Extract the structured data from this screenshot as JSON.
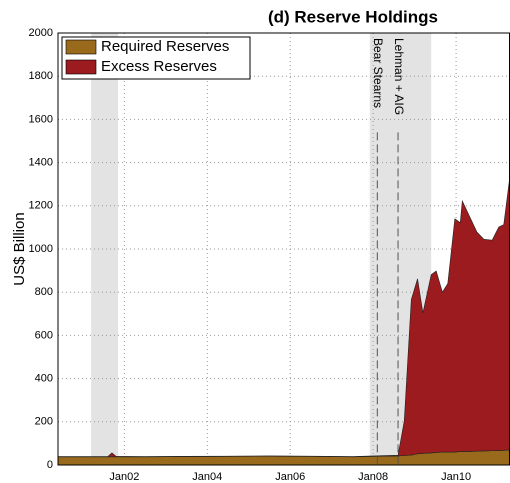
{
  "chart_data": {
    "type": "stacked-area",
    "title": "(d) Reserve Holdings",
    "y_label": "US$ Billion",
    "x": [
      2000.4,
      2001.0,
      2001.6,
      2001.7,
      2001.8,
      2002.5,
      2003.5,
      2004.5,
      2005.5,
      2006.5,
      2007.5,
      2008.0,
      2008.6,
      2008.75,
      2008.92,
      2009.07,
      2009.2,
      2009.4,
      2009.52,
      2009.67,
      2009.8,
      2009.97,
      2010.1,
      2010.15,
      2010.32,
      2010.5,
      2010.67,
      2010.87,
      2011.03,
      2011.15,
      2011.3
    ],
    "series": [
      {
        "name": "Required Reserves",
        "color": "#9a6a1c",
        "values": [
          38,
          38,
          38,
          38,
          38,
          38,
          39,
          40,
          41,
          40,
          38,
          40,
          42,
          44,
          46,
          52,
          54,
          56,
          58,
          60,
          60,
          60,
          62,
          62,
          63,
          64,
          65,
          66,
          67,
          68,
          70
        ]
      },
      {
        "name": "Excess Reserves",
        "color": "#9b1b1e",
        "values": [
          1,
          1,
          1,
          18,
          2,
          1,
          1,
          1,
          1,
          1,
          1,
          2,
          3,
          160,
          720,
          810,
          650,
          825,
          840,
          740,
          780,
          1080,
          1060,
          1160,
          1090,
          1015,
          980,
          975,
          1035,
          1045,
          1270
        ]
      }
    ],
    "xlim": [
      2000.4,
      2011.3
    ],
    "xticks": [
      {
        "value": 2002,
        "label": "Jan02"
      },
      {
        "value": 2004,
        "label": "Jan04"
      },
      {
        "value": 2006,
        "label": "Jan06"
      },
      {
        "value": 2008,
        "label": "Jan08"
      },
      {
        "value": 2010,
        "label": "Jan10"
      }
    ],
    "ylim": [
      0,
      2000
    ],
    "yticks": [
      0,
      200,
      400,
      600,
      800,
      1000,
      1200,
      1400,
      1600,
      1800,
      2000
    ],
    "grid": true,
    "legend": "upper-left",
    "shaded": [
      [
        2001.2,
        2001.85
      ],
      [
        2007.92,
        2009.4
      ]
    ],
    "annotations": [
      {
        "label": "Bear Stearns",
        "x": 2008.1
      },
      {
        "label": "Lehman + AIG",
        "x": 2008.6
      }
    ]
  }
}
